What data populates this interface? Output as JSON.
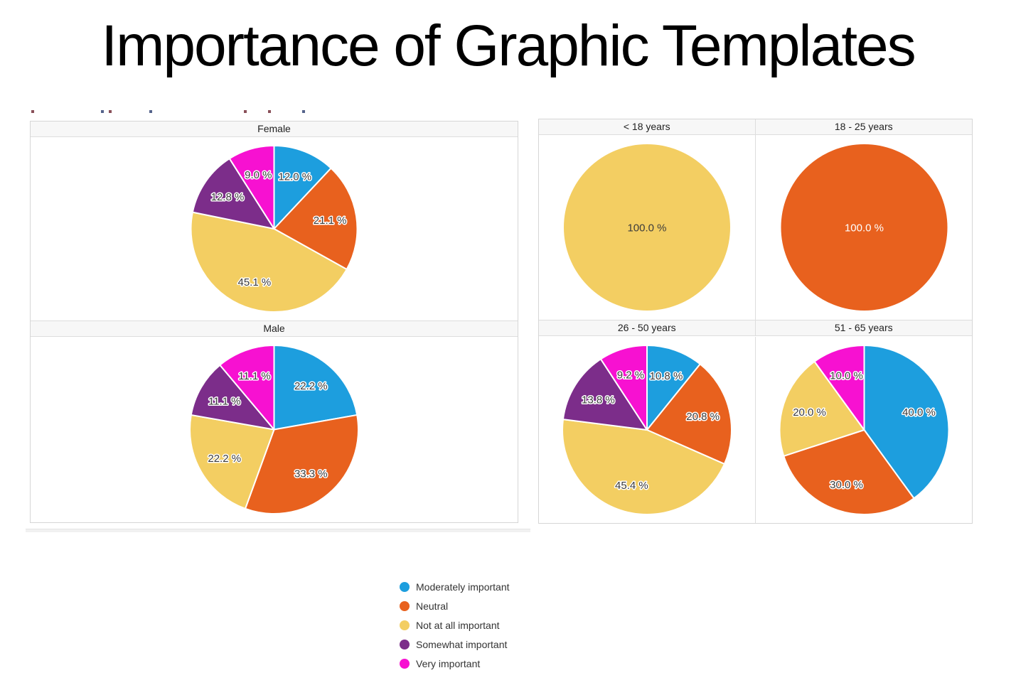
{
  "slide": {
    "title": "Importance of Graphic Templates"
  },
  "legend": {
    "items": [
      {
        "label": "Moderately important",
        "color": "#1d9ede"
      },
      {
        "label": "Neutral",
        "color": "#e8611e"
      },
      {
        "label": "Not at all important",
        "color": "#f3ce62"
      },
      {
        "label": "Somewhat important",
        "color": "#7c2d8a"
      },
      {
        "label": "Very important",
        "color": "#f711d1"
      }
    ]
  },
  "chart_data": [
    {
      "type": "pie",
      "title": "Female",
      "group": "gender",
      "start_angle_deg": -90,
      "direction": "clockwise",
      "value_suffix": " %",
      "slices": [
        {
          "label": "Moderately important",
          "value": 12.0,
          "color": "#1d9ede"
        },
        {
          "label": "Neutral",
          "value": 21.1,
          "color": "#e8611e"
        },
        {
          "label": "Not at all important",
          "value": 45.1,
          "color": "#f3ce62"
        },
        {
          "label": "Somewhat important",
          "value": 12.8,
          "color": "#7c2d8a"
        },
        {
          "label": "Very important",
          "value": 9.0,
          "color": "#f711d1"
        }
      ]
    },
    {
      "type": "pie",
      "title": "Male",
      "group": "gender",
      "start_angle_deg": -90,
      "direction": "clockwise",
      "value_suffix": " %",
      "slices": [
        {
          "label": "Moderately important",
          "value": 22.2,
          "color": "#1d9ede"
        },
        {
          "label": "Neutral",
          "value": 33.3,
          "color": "#e8611e"
        },
        {
          "label": "Not at all important",
          "value": 22.2,
          "color": "#f3ce62"
        },
        {
          "label": "Somewhat important",
          "value": 11.1,
          "color": "#7c2d8a"
        },
        {
          "label": "Very important",
          "value": 11.1,
          "color": "#f711d1"
        }
      ]
    },
    {
      "type": "pie",
      "title": "< 18 years",
      "group": "age",
      "start_angle_deg": -90,
      "direction": "clockwise",
      "value_suffix": " %",
      "slices": [
        {
          "label": "Not at all important",
          "value": 100.0,
          "color": "#f3ce62",
          "halo": false
        }
      ]
    },
    {
      "type": "pie",
      "title": "18 - 25 years",
      "group": "age",
      "start_angle_deg": -90,
      "direction": "clockwise",
      "value_suffix": " %",
      "slices": [
        {
          "label": "Neutral",
          "value": 100.0,
          "color": "#e8611e",
          "label_fill": "#ffffff",
          "halo": false
        }
      ]
    },
    {
      "type": "pie",
      "title": "26 - 50 years",
      "group": "age",
      "start_angle_deg": -90,
      "direction": "clockwise",
      "value_suffix": " %",
      "slices": [
        {
          "label": "Moderately important",
          "value": 10.8,
          "color": "#1d9ede"
        },
        {
          "label": "Neutral",
          "value": 20.8,
          "color": "#e8611e"
        },
        {
          "label": "Not at all important",
          "value": 45.4,
          "color": "#f3ce62"
        },
        {
          "label": "Somewhat important",
          "value": 13.8,
          "color": "#7c2d8a"
        },
        {
          "label": "Very important",
          "value": 9.2,
          "color": "#f711d1"
        }
      ]
    },
    {
      "type": "pie",
      "title": "51 - 65 years",
      "group": "age",
      "start_angle_deg": -90,
      "direction": "clockwise",
      "value_suffix": " %",
      "slices": [
        {
          "label": "Moderately important",
          "value": 40.0,
          "color": "#1d9ede"
        },
        {
          "label": "Neutral",
          "value": 30.0,
          "color": "#e8611e"
        },
        {
          "label": "Not at all important",
          "value": 20.0,
          "color": "#f3ce62"
        },
        {
          "label": "Very important",
          "value": 10.0,
          "color": "#f711d1"
        }
      ]
    }
  ]
}
